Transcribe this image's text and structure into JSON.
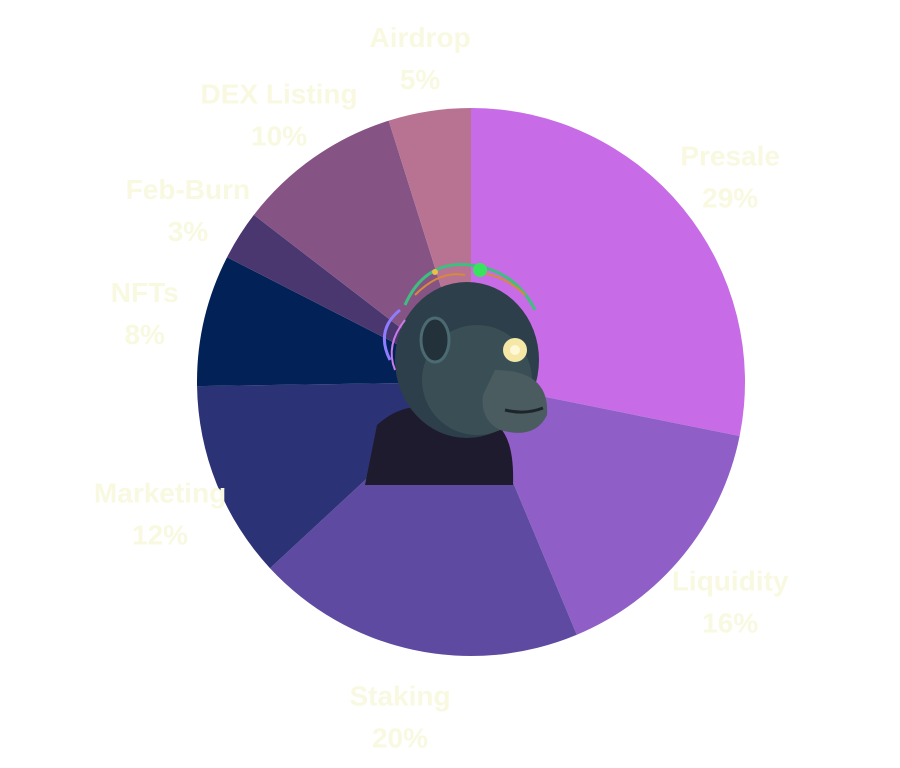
{
  "chart_data": {
    "type": "pie",
    "start_angle_deg": 0,
    "direction": "clockwise",
    "slices": [
      {
        "label": "Presale",
        "percent_label": "29%",
        "value": 29,
        "color": "#c76ce6"
      },
      {
        "label": "Liquidity",
        "percent_label": "16%",
        "value": 16,
        "color": "#8f5fc7"
      },
      {
        "label": "Staking",
        "percent_label": "20%",
        "value": 20,
        "color": "#5e4aa1"
      },
      {
        "label": "Marketing",
        "percent_label": "12%",
        "value": 12,
        "color": "#2c3276"
      },
      {
        "label": "NFTs",
        "percent_label": "8%",
        "value": 8,
        "color": "#022257"
      },
      {
        "label": "Feb-Burn",
        "percent_label": "3%",
        "value": 3,
        "color": "#4a3770"
      },
      {
        "label": "DEX Listing",
        "percent_label": "10%",
        "value": 10,
        "color": "#855485"
      },
      {
        "label": "Airdrop",
        "percent_label": "5%",
        "value": 5,
        "color": "#b87393"
      }
    ],
    "center_image": "cyber-ape-portrait"
  }
}
